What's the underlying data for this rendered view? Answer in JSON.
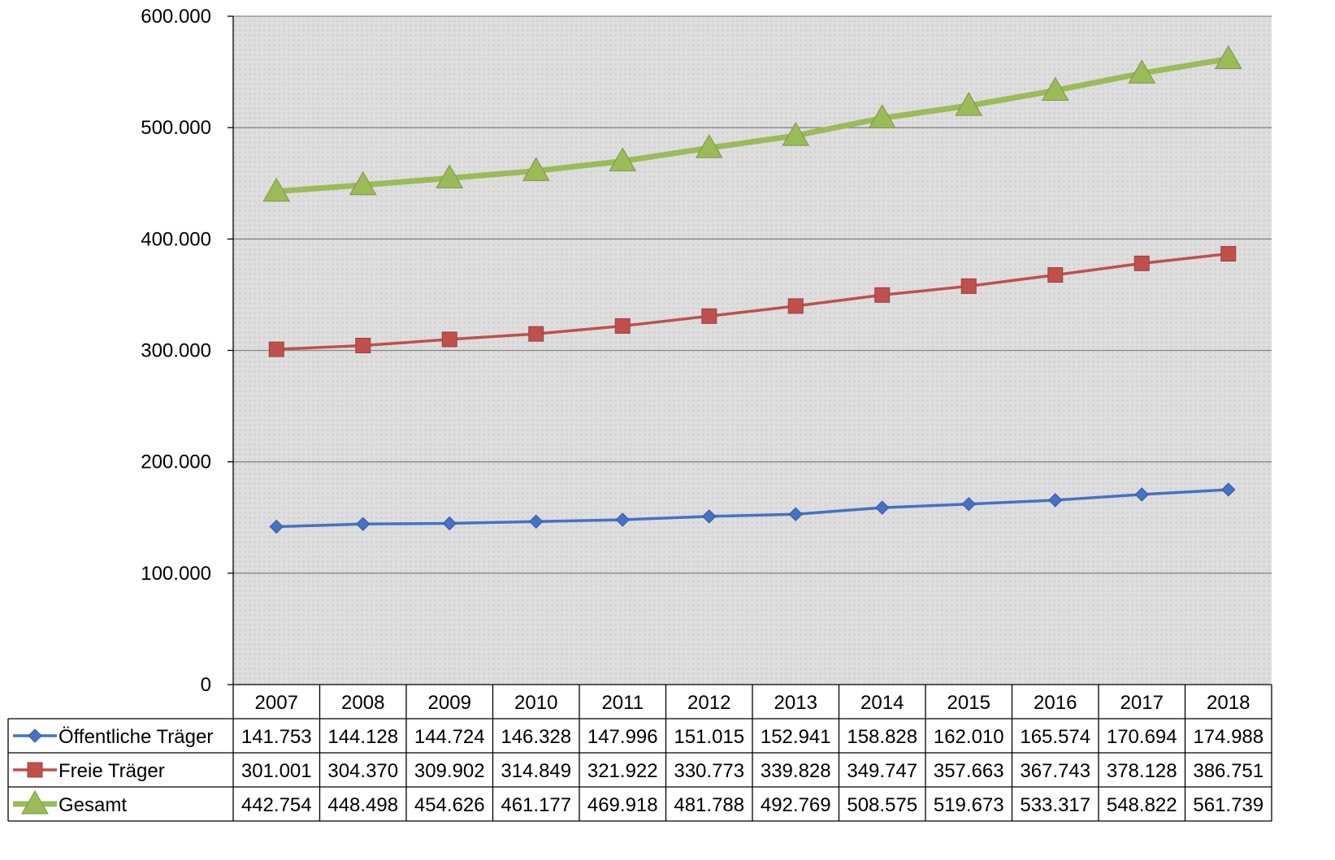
{
  "chart_data": {
    "type": "line",
    "title": "",
    "xlabel": "",
    "ylabel": "",
    "ylim": [
      0,
      600000
    ],
    "yticks": [
      0,
      100000,
      200000,
      300000,
      400000,
      500000,
      600000
    ],
    "ytick_labels": [
      "0",
      "100.000",
      "200.000",
      "300.000",
      "400.000",
      "500.000",
      "600.000"
    ],
    "grid": true,
    "legend_placement": "data-table",
    "categories": [
      "2007",
      "2008",
      "2009",
      "2010",
      "2011",
      "2012",
      "2013",
      "2014",
      "2015",
      "2016",
      "2017",
      "2018"
    ],
    "series": [
      {
        "name": "Öffentliche Träger",
        "color": "#4472C4",
        "marker": "diamond",
        "values": [
          141753,
          144128,
          144724,
          146328,
          147996,
          151015,
          152941,
          158828,
          162010,
          165574,
          170694,
          174988
        ],
        "labels": [
          "141.753",
          "144.128",
          "144.724",
          "146.328",
          "147.996",
          "151.015",
          "152.941",
          "158.828",
          "162.010",
          "165.574",
          "170.694",
          "174.988"
        ]
      },
      {
        "name": "Freie Träger",
        "color": "#C0504D",
        "marker": "square",
        "values": [
          301001,
          304370,
          309902,
          314849,
          321922,
          330773,
          339828,
          349747,
          357663,
          367743,
          378128,
          386751
        ],
        "labels": [
          "301.001",
          "304.370",
          "309.902",
          "314.849",
          "321.922",
          "330.773",
          "339.828",
          "349.747",
          "357.663",
          "367.743",
          "378.128",
          "386.751"
        ]
      },
      {
        "name": "Gesamt",
        "color": "#9BBB59",
        "marker": "triangle",
        "values": [
          442754,
          448498,
          454626,
          461177,
          469918,
          481788,
          492769,
          508575,
          519673,
          533317,
          548822,
          561739
        ],
        "labels": [
          "442.754",
          "448.498",
          "454.626",
          "461.177",
          "469.918",
          "481.788",
          "492.769",
          "508.575",
          "519.673",
          "533.317",
          "548.822",
          "561.739"
        ]
      }
    ]
  },
  "style": {
    "plot_background": "#DCDCDC",
    "gridline_color": "#888888",
    "table_border": "#000000"
  }
}
